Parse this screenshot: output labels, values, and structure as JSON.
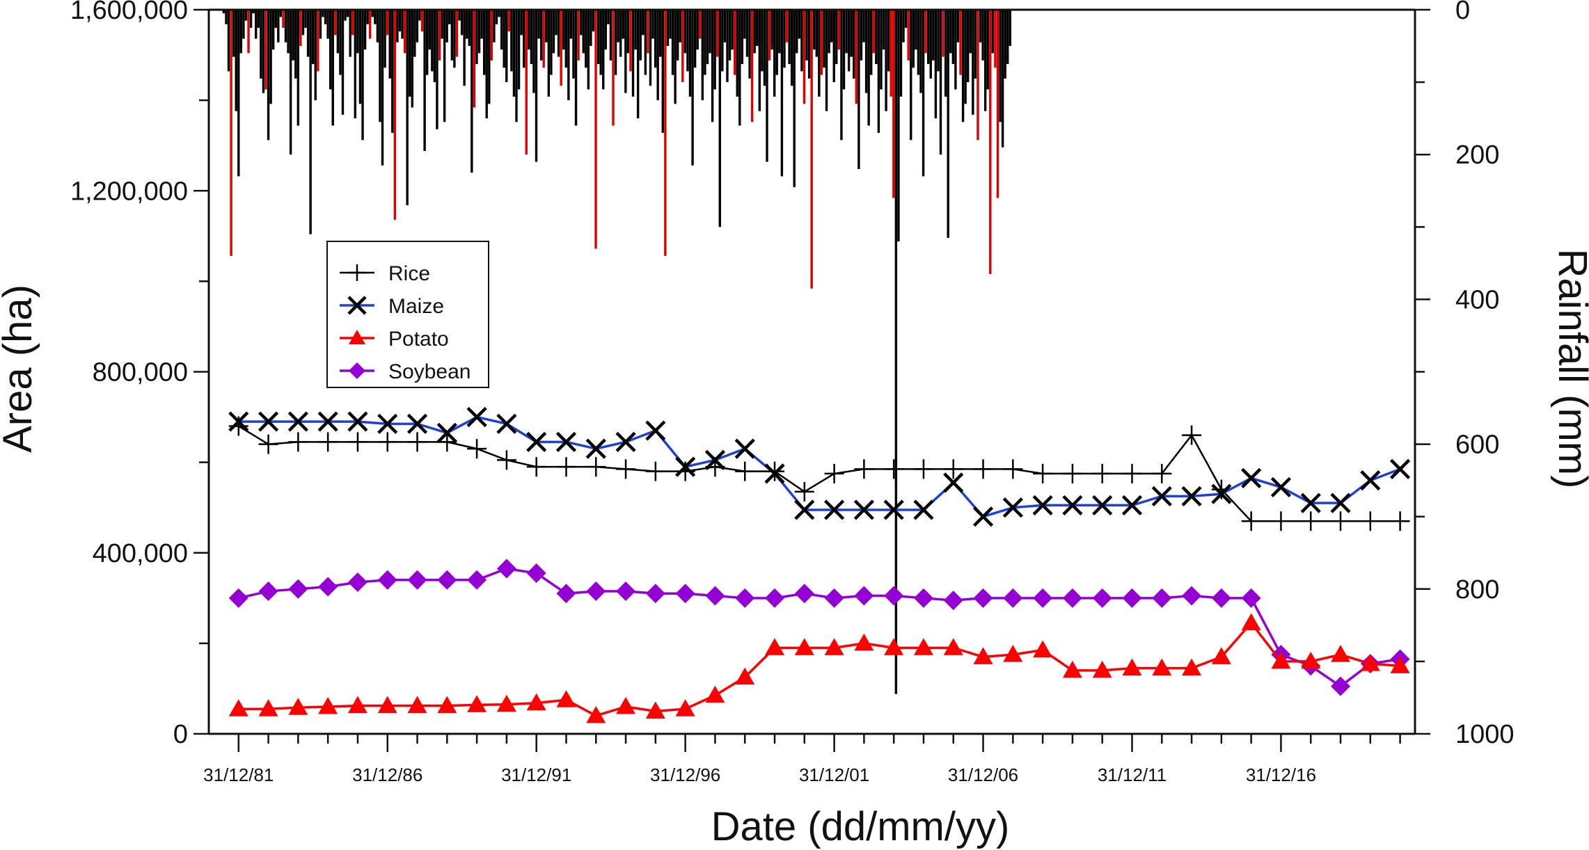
{
  "chart_data": {
    "type": "line",
    "xlabel": "Date (dd/mm/yy)",
    "ylabel": "Area (ha)",
    "y2label": "Rainfall (mm)",
    "x_tick_labels": [
      "31/12/81",
      "31/12/86",
      "31/12/91",
      "31/12/96",
      "31/12/01",
      "31/12/06",
      "31/12/11",
      "31/12/16"
    ],
    "x_tick_years": [
      1981,
      1986,
      1991,
      1996,
      2001,
      2006,
      2011,
      2016
    ],
    "xlim": [
      1980.0,
      2020.5
    ],
    "ylim": [
      0,
      1600000
    ],
    "y_tick_labels": [
      "0",
      "400,000",
      "800,000",
      "1,200,000",
      "1,600,000"
    ],
    "y_tick_values": [
      0,
      400000,
      800000,
      1200000,
      1600000
    ],
    "y2lim": [
      0,
      1000
    ],
    "y2_inverted": true,
    "y2_tick_labels": [
      "0",
      "200",
      "400",
      "600",
      "800",
      "1000"
    ],
    "y2_tick_values": [
      0,
      200,
      400,
      600,
      800,
      1000
    ],
    "legend_position": "upper-left",
    "colors": {
      "rice": "#000000",
      "maize_line": "#1f3fd6",
      "maize_marker": "#000000",
      "potato": "#ff0000",
      "soybean": "#9400d3",
      "rainfall": "#000000",
      "rainfall_highlight": "#e00000"
    },
    "series": [
      {
        "name": "Rice",
        "marker": "plus",
        "x": [
          1981,
          1982,
          1983,
          1984,
          1985,
          1986,
          1987,
          1988,
          1989,
          1990,
          1991,
          1992,
          1993,
          1994,
          1995,
          1996,
          1997,
          1998,
          1999,
          2000,
          2001,
          2002,
          2003,
          2004,
          2005,
          2006,
          2007,
          2008,
          2009,
          2010,
          2011,
          2012,
          2013,
          2014,
          2015,
          2016,
          2017,
          2018,
          2019,
          2020
        ],
        "values": [
          680000,
          640000,
          645000,
          645000,
          645000,
          645000,
          645000,
          645000,
          630000,
          605000,
          590000,
          590000,
          590000,
          585000,
          580000,
          580000,
          590000,
          580000,
          580000,
          535000,
          575000,
          585000,
          585000,
          585000,
          585000,
          585000,
          585000,
          575000,
          575000,
          575000,
          575000,
          575000,
          660000,
          540000,
          470000,
          470000,
          470000,
          470000,
          470000,
          470000
        ]
      },
      {
        "name": "Maize",
        "marker": "x",
        "x": [
          1981,
          1982,
          1983,
          1984,
          1985,
          1986,
          1987,
          1988,
          1989,
          1990,
          1991,
          1992,
          1993,
          1994,
          1995,
          1996,
          1997,
          1998,
          1999,
          2000,
          2001,
          2002,
          2003,
          2004,
          2005,
          2006,
          2007,
          2008,
          2009,
          2010,
          2011,
          2012,
          2013,
          2014,
          2015,
          2016,
          2017,
          2018,
          2019,
          2020
        ],
        "values": [
          690000,
          690000,
          690000,
          690000,
          690000,
          685000,
          685000,
          665000,
          700000,
          685000,
          645000,
          645000,
          630000,
          645000,
          670000,
          590000,
          605000,
          630000,
          575000,
          495000,
          495000,
          495000,
          495000,
          495000,
          555000,
          480000,
          500000,
          505000,
          505000,
          505000,
          505000,
          525000,
          525000,
          530000,
          565000,
          545000,
          510000,
          510000,
          560000,
          585000
        ]
      },
      {
        "name": "Potato",
        "marker": "triangle",
        "x": [
          1981,
          1982,
          1983,
          1984,
          1985,
          1986,
          1987,
          1988,
          1989,
          1990,
          1991,
          1992,
          1993,
          1994,
          1995,
          1996,
          1997,
          1998,
          1999,
          2000,
          2001,
          2002,
          2003,
          2004,
          2005,
          2006,
          2007,
          2008,
          2009,
          2010,
          2011,
          2012,
          2013,
          2014,
          2015,
          2016,
          2017,
          2018,
          2019,
          2020
        ],
        "values": [
          55000,
          55000,
          58000,
          60000,
          62000,
          62000,
          62000,
          62000,
          64000,
          65000,
          68000,
          75000,
          40000,
          60000,
          50000,
          55000,
          85000,
          125000,
          190000,
          190000,
          190000,
          200000,
          190000,
          190000,
          190000,
          170000,
          175000,
          185000,
          140000,
          140000,
          145000,
          145000,
          145000,
          170000,
          245000,
          160000,
          160000,
          175000,
          155000,
          150000
        ]
      },
      {
        "name": "Soybean",
        "marker": "diamond",
        "x": [
          1981,
          1982,
          1983,
          1984,
          1985,
          1986,
          1987,
          1988,
          1989,
          1990,
          1991,
          1992,
          1993,
          1994,
          1995,
          1996,
          1997,
          1998,
          1999,
          2000,
          2001,
          2002,
          2003,
          2004,
          2005,
          2006,
          2007,
          2008,
          2009,
          2010,
          2011,
          2012,
          2013,
          2014,
          2015,
          2016,
          2017,
          2018,
          2019,
          2020
        ],
        "values": [
          300000,
          315000,
          320000,
          325000,
          335000,
          340000,
          340000,
          340000,
          340000,
          365000,
          355000,
          310000,
          315000,
          315000,
          310000,
          310000,
          305000,
          300000,
          300000,
          310000,
          300000,
          305000,
          305000,
          300000,
          295000,
          300000,
          300000,
          300000,
          300000,
          300000,
          300000,
          300000,
          305000,
          300000,
          300000,
          175000,
          150000,
          105000,
          155000,
          165000
        ]
      }
    ],
    "rainfall": {
      "x_start": 1980.5,
      "x_step": 0.0833,
      "values_mm": [
        5,
        20,
        85,
        340,
        65,
        140,
        230,
        60,
        40,
        15,
        60,
        25,
        5,
        40,
        25,
        95,
        115,
        110,
        180,
        130,
        55,
        25,
        45,
        10,
        25,
        45,
        60,
        200,
        70,
        95,
        160,
        50,
        35,
        25,
        65,
        310,
        75,
        125,
        85,
        40,
        10,
        20,
        40,
        110,
        160,
        35,
        60,
        90,
        145,
        15,
        10,
        65,
        35,
        150,
        60,
        130,
        180,
        55,
        20,
        40,
        10,
        20,
        45,
        155,
        215,
        80,
        35,
        95,
        170,
        290,
        45,
        30,
        40,
        60,
        270,
        120,
        135,
        65,
        45,
        15,
        30,
        195,
        90,
        55,
        85,
        100,
        165,
        70,
        40,
        155,
        45,
        20,
        70,
        80,
        65,
        15,
        35,
        105,
        40,
        50,
        225,
        135,
        75,
        60,
        40,
        90,
        150,
        130,
        70,
        45,
        20,
        10,
        55,
        80,
        100,
        30,
        85,
        120,
        155,
        110,
        35,
        80,
        200,
        55,
        75,
        115,
        210,
        40,
        70,
        80,
        45,
        120,
        90,
        60,
        35,
        65,
        105,
        55,
        80,
        125,
        40,
        95,
        160,
        70,
        35,
        60,
        80,
        110,
        50,
        30,
        330,
        75,
        90,
        110,
        55,
        20,
        70,
        160,
        90,
        45,
        65,
        40,
        115,
        60,
        85,
        120,
        55,
        150,
        70,
        35,
        90,
        60,
        105,
        40,
        80,
        125,
        65,
        170,
        340,
        50,
        40,
        90,
        130,
        70,
        45,
        100,
        60,
        85,
        120,
        215,
        80,
        55,
        40,
        125,
        90,
        75,
        60,
        155,
        110,
        65,
        300,
        85,
        45,
        100,
        70,
        55,
        90,
        120,
        160,
        75,
        40,
        65,
        95,
        155,
        60,
        50,
        140,
        85,
        105,
        210,
        70,
        55,
        120,
        90,
        60,
        230,
        80,
        45,
        75,
        105,
        245,
        60,
        40,
        85,
        130,
        70,
        95,
        385,
        55,
        65,
        120,
        90,
        80,
        140,
        60,
        45,
        100,
        75,
        55,
        180,
        110,
        60,
        85,
        65,
        95,
        130,
        220,
        70,
        45,
        115,
        160,
        90,
        60,
        75,
        170,
        110,
        55,
        140,
        85,
        120,
        260,
        945,
        320,
        120,
        45,
        25,
        70,
        180,
        80,
        55,
        90,
        115,
        230,
        60,
        75,
        95,
        70,
        150,
        85,
        200,
        65,
        120,
        315,
        60,
        75,
        110,
        45,
        90,
        155,
        130,
        100,
        60,
        145,
        95,
        180,
        45,
        70,
        140,
        110,
        365,
        60,
        80,
        260,
        155,
        190,
        95,
        75,
        50
      ]
    }
  }
}
